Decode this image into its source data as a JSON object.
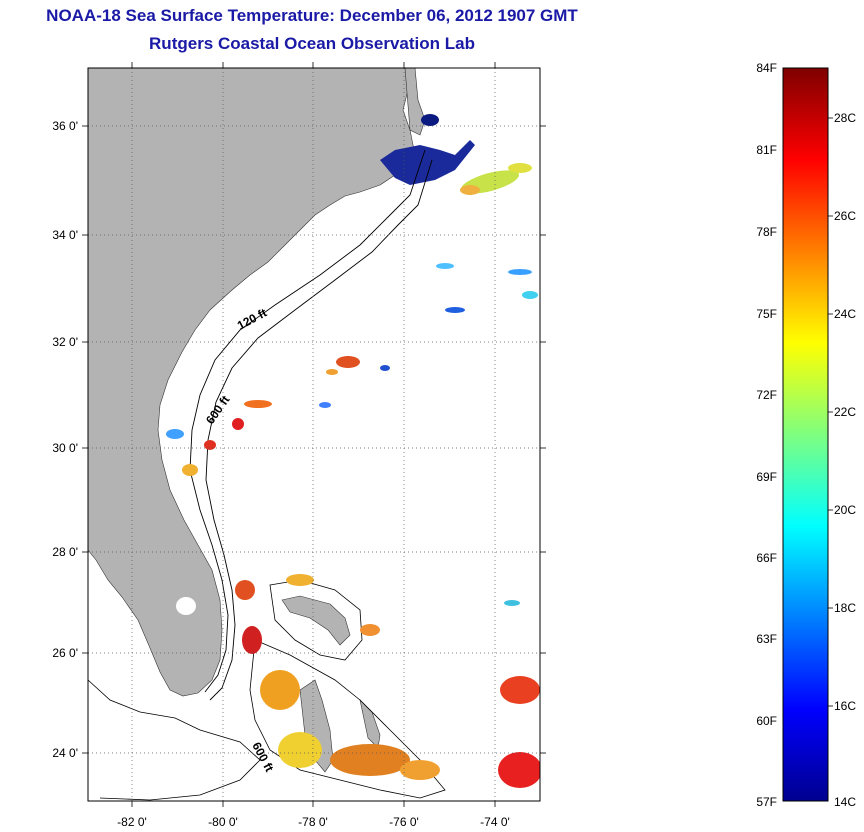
{
  "title": "NOAA-18 Sea Surface Temperature:  December 06, 2012 1907 GMT",
  "subtitle": "Rutgers Coastal Ocean Observation Lab",
  "map": {
    "lat_labels": [
      "36 0'",
      "34 0'",
      "32 0'",
      "30 0'",
      "28 0'",
      "26 0'",
      "24 0'"
    ],
    "lon_labels": [
      "-82 0'",
      "-80 0'",
      "-78 0'",
      "-76 0'",
      "-74 0'"
    ],
    "contour_labels": [
      "120 ft",
      "600 ft",
      "600 ft"
    ],
    "colors": {
      "land": "#b3b3b3",
      "water": "#ffffff",
      "grid": "#555555"
    }
  },
  "colorbar": {
    "fahrenheit_labels": [
      "84F",
      "81F",
      "78F",
      "75F",
      "72F",
      "69F",
      "66F",
      "63F",
      "60F",
      "57F"
    ],
    "celsius_labels": [
      "28C",
      "26C",
      "24C",
      "22C",
      "20C",
      "18C",
      "16C",
      "14C"
    ],
    "range_f": [
      57,
      84
    ],
    "range_c": [
      14,
      28.9
    ]
  }
}
